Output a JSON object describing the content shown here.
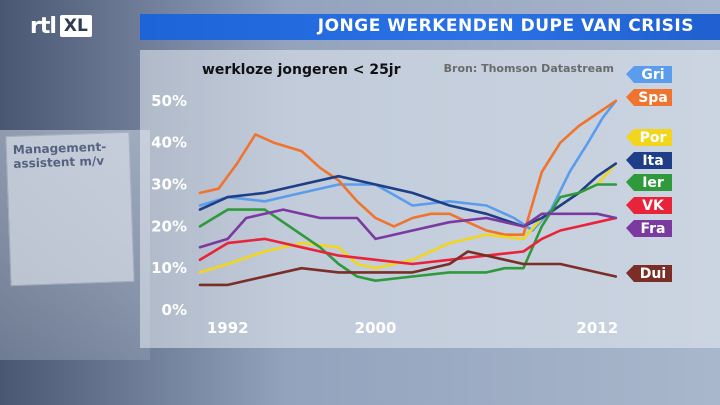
{
  "header": {
    "logo_text": "rtl",
    "logo_badge": "XL",
    "title": "JONGE WERKENDEN DUPE VAN CRISIS"
  },
  "background_sign": {
    "title": "Management-assistent m/v"
  },
  "chart_data": {
    "type": "line",
    "title": "werkloze jongeren < 25jr",
    "source": "Bron: Thomson Datastream",
    "xlabel": "",
    "ylabel": "",
    "xlim": [
      1990.5,
      2013.5
    ],
    "ylim": [
      0,
      55
    ],
    "y_ticks": [
      0,
      10,
      20,
      30,
      40,
      50
    ],
    "y_tick_labels": [
      "0%",
      "10%",
      "20%",
      "30%",
      "40%",
      "50%"
    ],
    "x_ticks": [
      1992,
      2000,
      2012
    ],
    "x_tick_labels": [
      "1992",
      "2000",
      "2012"
    ],
    "grid": false,
    "legend_placement": "right",
    "series": [
      {
        "name": "Gri",
        "color": "#5b9ded",
        "x": [
          1990.5,
          1992,
          1994,
          1996,
          1998,
          2000,
          2002,
          2004,
          2006,
          2007.5,
          2008.5,
          2009.5,
          2010.5,
          2011.5,
          2012.3,
          2013
        ],
        "y": [
          25,
          27,
          26,
          28,
          30,
          30,
          25,
          26,
          25,
          22,
          19,
          24,
          33,
          40,
          46,
          50
        ]
      },
      {
        "name": "Spa",
        "color": "#f0732e",
        "x": [
          1990.5,
          1991.5,
          1992.5,
          1993.5,
          1994.5,
          1996,
          1997,
          1998,
          1999,
          2000,
          2001,
          2002,
          2003,
          2004,
          2005,
          2006,
          2007,
          2008,
          2009,
          2010,
          2011,
          2012,
          2013
        ],
        "y": [
          28,
          29,
          35,
          42,
          40,
          38,
          34,
          31,
          26,
          22,
          20,
          22,
          23,
          23,
          21,
          19,
          18,
          18,
          33,
          40,
          44,
          47,
          50
        ]
      },
      {
        "name": "Por",
        "color": "#f2d61e",
        "x": [
          1990.5,
          1992,
          1994,
          1996,
          1998,
          1999,
          2000,
          2002,
          2004,
          2006,
          2008,
          2009,
          2010,
          2011,
          2012,
          2013
        ],
        "y": [
          9,
          11,
          14,
          16,
          15,
          11,
          10,
          12,
          16,
          18,
          17,
          22,
          25,
          28,
          30,
          35
        ]
      },
      {
        "name": "Ita",
        "color": "#1e3e88",
        "x": [
          1990.5,
          1992,
          1994,
          1996,
          1998,
          2000,
          2002,
          2004,
          2006,
          2008,
          2009,
          2010,
          2011,
          2012,
          2013
        ],
        "y": [
          24,
          27,
          28,
          30,
          32,
          30,
          28,
          25,
          23,
          20,
          22,
          25,
          28,
          32,
          35
        ]
      },
      {
        "name": "Ier",
        "color": "#2e9a3b",
        "x": [
          1990.5,
          1992,
          1994,
          1996,
          1997,
          1998,
          1999,
          2000,
          2002,
          2004,
          2006,
          2007,
          2008,
          2009,
          2010,
          2011,
          2012,
          2013
        ],
        "y": [
          20,
          24,
          24,
          18,
          15,
          11,
          8,
          7,
          8,
          9,
          9,
          10,
          10,
          20,
          27,
          28,
          30,
          30
        ]
      },
      {
        "name": "VK",
        "color": "#e8233a",
        "x": [
          1990.5,
          1992,
          1994,
          1996,
          1998,
          2000,
          2002,
          2004,
          2006,
          2008,
          2009,
          2010,
          2011,
          2012,
          2013
        ],
        "y": [
          12,
          16,
          17,
          15,
          13,
          12,
          11,
          12,
          13,
          14,
          17,
          19,
          20,
          21,
          22
        ]
      },
      {
        "name": "Fra",
        "color": "#7b3a9f",
        "x": [
          1990.5,
          1992,
          1993,
          1995,
          1997,
          1999,
          2000,
          2002,
          2004,
          2006,
          2008,
          2009,
          2010,
          2011,
          2012,
          2013
        ],
        "y": [
          15,
          17,
          22,
          24,
          22,
          22,
          17,
          19,
          21,
          22,
          20,
          23,
          23,
          23,
          23,
          22
        ]
      },
      {
        "name": "Dui",
        "color": "#7a2e26",
        "x": [
          1990.5,
          1992,
          1994,
          1996,
          1998,
          2000,
          2002,
          2004,
          2005,
          2006,
          2008,
          2010,
          2012,
          2013
        ],
        "y": [
          6,
          6,
          8,
          10,
          9,
          9,
          9,
          11,
          14,
          13,
          11,
          11,
          9,
          8
        ]
      }
    ]
  },
  "legend_order": [
    "Gri",
    "Spa",
    "Por",
    "Ita",
    "Ier",
    "VK",
    "Fra",
    "Dui"
  ]
}
